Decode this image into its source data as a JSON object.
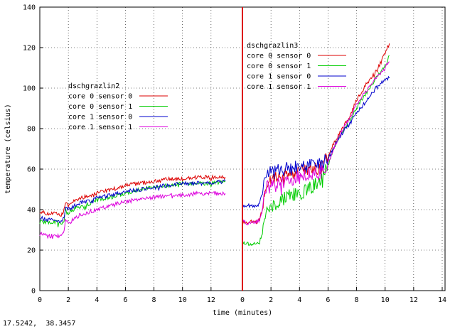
{
  "status": {
    "coordinate_readout": "17.5242,  38.3457"
  },
  "chart_data": {
    "type": "line",
    "title": "",
    "xlabel": "time (minutes)",
    "ylabel": "temperature (celsius)",
    "xlim": [
      0,
      14
    ],
    "ylim": [
      0,
      140
    ],
    "x_ticks": [
      "0",
      "2",
      "4",
      "6",
      "8",
      "10",
      "12",
      "0",
      "2",
      "4",
      "6",
      "8",
      "10",
      "12",
      "14"
    ],
    "y_ticks": [
      "0",
      "20",
      "40",
      "60",
      "80",
      "100",
      "120",
      "140"
    ],
    "grid": true,
    "divider": {
      "x_minutes": 0,
      "color": "#dd0000",
      "note": "separates two host runs"
    },
    "panels": [
      {
        "legend_title": "dschgrazlin2",
        "legend_placement": "left-middle",
        "x_offset": 0,
        "series": [
          {
            "name": "core 0 sensor 0",
            "color": "#dd0000",
            "points": [
              [
                0,
                39
              ],
              [
                0.5,
                38
              ],
              [
                1,
                38
              ],
              [
                1.5,
                37
              ],
              [
                1.6,
                38
              ],
              [
                1.8,
                43
              ],
              [
                2,
                42
              ],
              [
                2.5,
                45
              ],
              [
                3,
                46
              ],
              [
                3.5,
                47
              ],
              [
                4,
                48
              ],
              [
                5,
                50
              ],
              [
                6,
                52
              ],
              [
                7,
                53
              ],
              [
                8,
                54
              ],
              [
                9,
                55
              ],
              [
                10,
                55
              ],
              [
                11,
                56
              ],
              [
                12,
                56
              ],
              [
                13,
                56
              ]
            ]
          },
          {
            "name": "core 0 sensor 1",
            "color": "#00cc00",
            "points": [
              [
                0,
                34
              ],
              [
                0.5,
                34
              ],
              [
                1,
                34
              ],
              [
                1.5,
                33
              ],
              [
                1.7,
                35
              ],
              [
                1.8,
                40
              ],
              [
                2,
                38
              ],
              [
                2.5,
                41
              ],
              [
                3,
                42
              ],
              [
                3.5,
                43
              ],
              [
                4,
                45
              ],
              [
                5,
                46
              ],
              [
                6,
                48
              ],
              [
                7,
                50
              ],
              [
                8,
                51
              ],
              [
                9,
                52
              ],
              [
                10,
                53
              ],
              [
                11,
                53
              ],
              [
                12,
                53
              ],
              [
                13,
                54
              ]
            ]
          },
          {
            "name": "core 1 sensor 0",
            "color": "#0000cc",
            "points": [
              [
                0,
                36
              ],
              [
                0.5,
                35
              ],
              [
                1,
                35
              ],
              [
                1.5,
                34
              ],
              [
                1.7,
                36
              ],
              [
                1.8,
                41
              ],
              [
                2,
                40
              ],
              [
                2.5,
                42
              ],
              [
                3,
                44
              ],
              [
                3.5,
                44
              ],
              [
                4,
                46
              ],
              [
                5,
                47
              ],
              [
                6,
                49
              ],
              [
                7,
                50
              ],
              [
                8,
                51
              ],
              [
                9,
                52
              ],
              [
                10,
                53
              ],
              [
                11,
                53
              ],
              [
                12,
                53
              ],
              [
                13,
                54
              ]
            ]
          },
          {
            "name": "core 1 sensor 1",
            "color": "#dd00dd",
            "points": [
              [
                0,
                28
              ],
              [
                0.5,
                27
              ],
              [
                1,
                27
              ],
              [
                1.5,
                27
              ],
              [
                1.7,
                30
              ],
              [
                1.8,
                35
              ],
              [
                2,
                33
              ],
              [
                2.5,
                36
              ],
              [
                3,
                38
              ],
              [
                3.5,
                39
              ],
              [
                4,
                40
              ],
              [
                5,
                42
              ],
              [
                6,
                44
              ],
              [
                7,
                45
              ],
              [
                8,
                46
              ],
              [
                9,
                47
              ],
              [
                10,
                47
              ],
              [
                11,
                48
              ],
              [
                12,
                48
              ],
              [
                13,
                48
              ]
            ]
          }
        ]
      },
      {
        "legend_title": "dschgrazlin3",
        "legend_placement": "top-middle-right",
        "x_offset": 14.2,
        "series": [
          {
            "name": "core 0 sensor 0",
            "color": "#dd0000",
            "points": [
              [
                0,
                34
              ],
              [
                0.5,
                34
              ],
              [
                1,
                34
              ],
              [
                1.2,
                35
              ],
              [
                1.4,
                40
              ],
              [
                1.6,
                52
              ],
              [
                2,
                55
              ],
              [
                2.5,
                56
              ],
              [
                3,
                57
              ],
              [
                3.5,
                58
              ],
              [
                4,
                59
              ],
              [
                4.5,
                60
              ],
              [
                5,
                60
              ],
              [
                5.5,
                61
              ],
              [
                6,
                66
              ],
              [
                6.5,
                74
              ],
              [
                7,
                80
              ],
              [
                7.5,
                86
              ],
              [
                8,
                94
              ],
              [
                8.5,
                100
              ],
              [
                9,
                105
              ],
              [
                9.5,
                110
              ],
              [
                10,
                117
              ],
              [
                10.3,
                122
              ]
            ]
          },
          {
            "name": "core 0 sensor 1",
            "color": "#00cc00",
            "points": [
              [
                0,
                24
              ],
              [
                0.5,
                23
              ],
              [
                1,
                23
              ],
              [
                1.2,
                24
              ],
              [
                1.4,
                28
              ],
              [
                1.6,
                38
              ],
              [
                2,
                42
              ],
              [
                2.5,
                44
              ],
              [
                3,
                46
              ],
              [
                3.5,
                47
              ],
              [
                4,
                48
              ],
              [
                4.5,
                50
              ],
              [
                5,
                52
              ],
              [
                5.5,
                54
              ],
              [
                6,
                62
              ],
              [
                6.5,
                72
              ],
              [
                7,
                78
              ],
              [
                7.5,
                84
              ],
              [
                8,
                90
              ],
              [
                8.5,
                96
              ],
              [
                9,
                101
              ],
              [
                9.5,
                106
              ],
              [
                10,
                111
              ],
              [
                10.3,
                116
              ]
            ]
          },
          {
            "name": "core 1 sensor 0",
            "color": "#0000cc",
            "points": [
              [
                0,
                42
              ],
              [
                0.5,
                42
              ],
              [
                1,
                42
              ],
              [
                1.2,
                43
              ],
              [
                1.4,
                48
              ],
              [
                1.6,
                58
              ],
              [
                2,
                58
              ],
              [
                2.5,
                59
              ],
              [
                3,
                60
              ],
              [
                3.5,
                61
              ],
              [
                4,
                61
              ],
              [
                4.5,
                61
              ],
              [
                5,
                62
              ],
              [
                5.5,
                62
              ],
              [
                6,
                65
              ],
              [
                6.5,
                72
              ],
              [
                7,
                78
              ],
              [
                7.5,
                82
              ],
              [
                8,
                88
              ],
              [
                8.5,
                92
              ],
              [
                9,
                97
              ],
              [
                9.5,
                101
              ],
              [
                10,
                104
              ],
              [
                10.3,
                105
              ]
            ]
          },
          {
            "name": "core 1 sensor 1",
            "color": "#dd00dd",
            "points": [
              [
                0,
                34
              ],
              [
                0.5,
                33
              ],
              [
                1,
                34
              ],
              [
                1.2,
                35
              ],
              [
                1.4,
                40
              ],
              [
                1.6,
                50
              ],
              [
                2,
                52
              ],
              [
                2.5,
                53
              ],
              [
                3,
                54
              ],
              [
                3.5,
                55
              ],
              [
                4,
                56
              ],
              [
                4.5,
                57
              ],
              [
                5,
                58
              ],
              [
                5.5,
                58
              ],
              [
                6,
                63
              ],
              [
                6.5,
                72
              ],
              [
                7,
                79
              ],
              [
                7.5,
                85
              ],
              [
                8,
                92
              ],
              [
                8.5,
                97
              ],
              [
                9,
                102
              ],
              [
                9.5,
                106
              ],
              [
                10,
                110
              ],
              [
                10.3,
                113
              ]
            ]
          }
        ]
      }
    ]
  }
}
